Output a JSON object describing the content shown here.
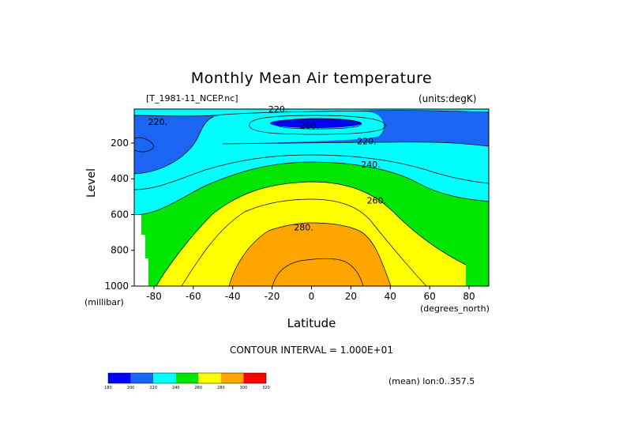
{
  "chart_data": {
    "type": "heatmap",
    "title": "Monthly Mean Air temperature",
    "source_label": "[T_1981-11_NCEP.nc]",
    "units_label": "(units:degK)",
    "xlabel": "Latitude",
    "x_units": "(degrees_north)",
    "ylabel": "Level",
    "y_units": "(millibar)",
    "xlim": [
      -90,
      90
    ],
    "ylim": [
      1000,
      10
    ],
    "x_ticks": [
      "-80",
      "-60",
      "-40",
      "-20",
      "0",
      "20",
      "40",
      "60",
      "80"
    ],
    "x_tick_values": [
      -80,
      -60,
      -40,
      -20,
      0,
      20,
      40,
      60,
      80
    ],
    "y_ticks": [
      "200",
      "400",
      "600",
      "800",
      "1000"
    ],
    "y_tick_values": [
      200,
      400,
      600,
      800,
      1000
    ],
    "contour_interval_text": "CONTOUR INTERVAL = 1.000E+01",
    "contour_labels": [
      {
        "text": "220.",
        "lat": -78,
        "level": 80
      },
      {
        "text": "220.",
        "lat": -17,
        "level": 10
      },
      {
        "text": "200.",
        "lat": -1,
        "level": 100
      },
      {
        "text": "220.",
        "lat": 28,
        "level": 190
      },
      {
        "text": "240.",
        "lat": 30,
        "level": 320
      },
      {
        "text": "260.",
        "lat": 33,
        "level": 520
      },
      {
        "text": "280.",
        "lat": -4,
        "level": 670
      }
    ],
    "contour_levels": [
      180,
      200,
      220,
      240,
      260,
      280,
      300,
      320
    ],
    "colorbar": {
      "labels": [
        "180",
        "200",
        "220",
        "240",
        "260",
        "280",
        "300",
        "320"
      ],
      "colors": [
        "#0000ff",
        "#1a66f2",
        "#00ffff",
        "#00e600",
        "#ffff00",
        "#ffa500",
        "#ff0000"
      ]
    },
    "mean_label": "(mean) lon:0..357.5"
  }
}
